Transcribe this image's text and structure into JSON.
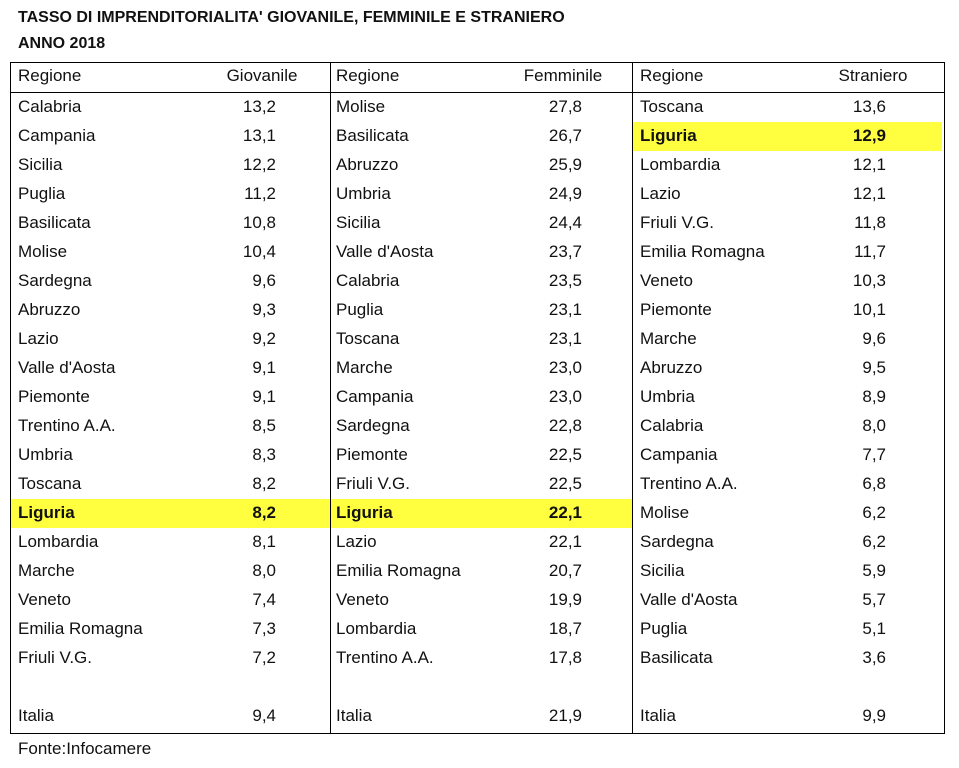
{
  "title": [
    "TASSO DI IMPRENDITORIALITA' GIOVANILE, FEMMINILE E STRANIERO",
    "ANNO 2018"
  ],
  "tables": [
    {
      "headers": [
        "Regione",
        "Giovanile"
      ],
      "highlight_row": 14,
      "rows": [
        [
          "Calabria",
          "13,2"
        ],
        [
          "Campania",
          "13,1"
        ],
        [
          "Sicilia",
          "12,2"
        ],
        [
          "Puglia",
          "11,2"
        ],
        [
          "Basilicata",
          "10,8"
        ],
        [
          "Molise",
          "10,4"
        ],
        [
          "Sardegna",
          "9,6"
        ],
        [
          "Abruzzo",
          "9,3"
        ],
        [
          "Lazio",
          "9,2"
        ],
        [
          "Valle d'Aosta",
          "9,1"
        ],
        [
          "Piemonte",
          "9,1"
        ],
        [
          "Trentino A.A.",
          "8,5"
        ],
        [
          "Umbria",
          "8,3"
        ],
        [
          "Toscana",
          "8,2"
        ],
        [
          "Liguria",
          "8,2"
        ],
        [
          "Lombardia",
          "8,1"
        ],
        [
          "Marche",
          "8,0"
        ],
        [
          "Veneto",
          "7,4"
        ],
        [
          "Emilia Romagna",
          "7,3"
        ],
        [
          "Friuli V.G.",
          "7,2"
        ]
      ],
      "total": [
        "Italia",
        "9,4"
      ]
    },
    {
      "headers": [
        "Regione",
        "Femminile"
      ],
      "highlight_row": 14,
      "rows": [
        [
          "Molise",
          "27,8"
        ],
        [
          "Basilicata",
          "26,7"
        ],
        [
          "Abruzzo",
          "25,9"
        ],
        [
          "Umbria",
          "24,9"
        ],
        [
          "Sicilia",
          "24,4"
        ],
        [
          "Valle d'Aosta",
          "23,7"
        ],
        [
          "Calabria",
          "23,5"
        ],
        [
          "Puglia",
          "23,1"
        ],
        [
          "Toscana",
          "23,1"
        ],
        [
          "Marche",
          "23,0"
        ],
        [
          "Campania",
          "23,0"
        ],
        [
          "Sardegna",
          "22,8"
        ],
        [
          "Piemonte",
          "22,5"
        ],
        [
          "Friuli V.G.",
          "22,5"
        ],
        [
          "Liguria",
          "22,1"
        ],
        [
          "Lazio",
          "22,1"
        ],
        [
          "Emilia Romagna",
          "20,7"
        ],
        [
          "Veneto",
          "19,9"
        ],
        [
          "Lombardia",
          "18,7"
        ],
        [
          "Trentino A.A.",
          "17,8"
        ]
      ],
      "total": [
        "Italia",
        "21,9"
      ]
    },
    {
      "headers": [
        "Regione",
        "Straniero"
      ],
      "highlight_row": 1,
      "rows": [
        [
          "Toscana",
          "13,6"
        ],
        [
          "Liguria",
          "12,9"
        ],
        [
          "Lombardia",
          "12,1"
        ],
        [
          "Lazio",
          "12,1"
        ],
        [
          "Friuli V.G.",
          "11,8"
        ],
        [
          "Emilia Romagna",
          "11,7"
        ],
        [
          "Veneto",
          "10,3"
        ],
        [
          "Piemonte",
          "10,1"
        ],
        [
          "Marche",
          "9,6"
        ],
        [
          "Abruzzo",
          "9,5"
        ],
        [
          "Umbria",
          "8,9"
        ],
        [
          "Calabria",
          "8,0"
        ],
        [
          "Campania",
          "7,7"
        ],
        [
          "Trentino A.A.",
          "6,8"
        ],
        [
          "Molise",
          "6,2"
        ],
        [
          "Sardegna",
          "6,2"
        ],
        [
          "Sicilia",
          "5,9"
        ],
        [
          "Valle d'Aosta",
          "5,7"
        ],
        [
          "Puglia",
          "5,1"
        ],
        [
          "Basilicata",
          "3,6"
        ]
      ],
      "total": [
        "Italia",
        "9,9"
      ]
    }
  ],
  "highlight_color": "#ffff40",
  "source": "Fonte:Infocamere"
}
